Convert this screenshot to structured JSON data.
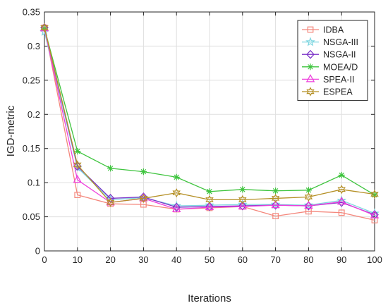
{
  "chart_data": {
    "type": "line",
    "title": "",
    "xlabel": "Iterations",
    "ylabel": "IGD-metric",
    "xlim": [
      0,
      100
    ],
    "ylim": [
      0,
      0.35
    ],
    "xticks": [
      0,
      10,
      20,
      30,
      40,
      50,
      60,
      70,
      80,
      90,
      100
    ],
    "xtick_labels": [
      "0",
      "10",
      "20",
      "30",
      "40",
      "50",
      "60",
      "70",
      "80",
      "90",
      "100"
    ],
    "yticks": [
      0,
      0.05,
      0.1,
      0.15,
      0.2,
      0.25,
      0.3,
      0.35
    ],
    "ytick_labels": [
      "0",
      "0.05",
      "0.1",
      "0.15",
      "0.2",
      "0.25",
      "0.3",
      "0.35"
    ],
    "grid": true,
    "legend_position": "top-right",
    "x": [
      0,
      10,
      20,
      30,
      40,
      50,
      60,
      70,
      80,
      90,
      100
    ],
    "series": [
      {
        "name": "IDBA",
        "color": "#f4877c",
        "marker": "square",
        "values": [
          0.327,
          0.082,
          0.069,
          0.068,
          0.061,
          0.063,
          0.065,
          0.051,
          0.058,
          0.056,
          0.045
        ]
      },
      {
        "name": "NSGA-III",
        "color": "#7fd6e0",
        "marker": "star",
        "values": [
          0.321,
          0.122,
          0.075,
          0.078,
          0.066,
          0.067,
          0.068,
          0.068,
          0.067,
          0.074,
          0.055
        ]
      },
      {
        "name": "NSGA-II",
        "color": "#7b32c8",
        "marker": "diamond",
        "values": [
          0.327,
          0.124,
          0.077,
          0.079,
          0.064,
          0.065,
          0.066,
          0.067,
          0.066,
          0.071,
          0.053
        ]
      },
      {
        "name": "MOEA/D",
        "color": "#3ec43e",
        "marker": "asterisk",
        "values": [
          0.326,
          0.146,
          0.121,
          0.116,
          0.108,
          0.087,
          0.09,
          0.088,
          0.089,
          0.111,
          0.082
        ]
      },
      {
        "name": "SPEA-II",
        "color": "#ee3fdc",
        "marker": "triangle",
        "values": [
          0.326,
          0.104,
          0.071,
          0.077,
          0.061,
          0.064,
          0.065,
          0.067,
          0.066,
          0.072,
          0.052
        ]
      },
      {
        "name": "ESPEA",
        "color": "#b59026",
        "marker": "hexagram",
        "values": [
          0.327,
          0.126,
          0.071,
          0.077,
          0.085,
          0.075,
          0.075,
          0.077,
          0.079,
          0.09,
          0.083
        ]
      }
    ]
  }
}
